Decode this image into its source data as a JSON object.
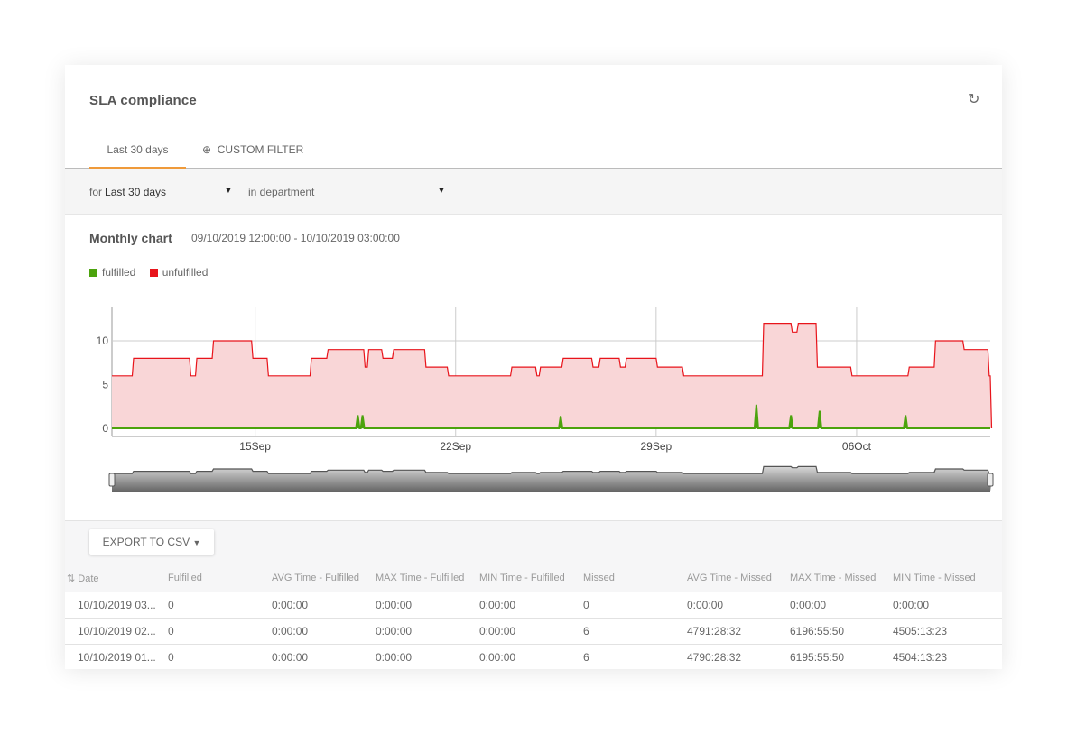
{
  "header": {
    "title": "SLA compliance",
    "refresh_icon": "refresh-icon"
  },
  "tabs": [
    {
      "label": "Last 30 days",
      "active": true
    },
    {
      "label": "CUSTOM FILTER",
      "icon": "plus-circle-icon"
    }
  ],
  "filters": {
    "for_label": "for",
    "period": "Last 30 days",
    "department": "in department"
  },
  "chart": {
    "title": "Monthly chart",
    "range": "09/10/2019 12:00:00 - 10/10/2019 03:00:00"
  },
  "chart_data": {
    "type": "area",
    "x_range": [
      "2019-09-10T00:00",
      "2019-10-10T16:00"
    ],
    "ylim": [
      -1,
      14
    ],
    "y_ticks": [
      0,
      5,
      10
    ],
    "x_ticks": [
      {
        "date": "2019-09-15T00:00",
        "label": "15Sep"
      },
      {
        "date": "2019-09-22T00:00",
        "label": "22Sep"
      },
      {
        "date": "2019-09-29T00:00",
        "label": "29Sep"
      },
      {
        "date": "2019-10-06T00:00",
        "label": "06Oct"
      }
    ],
    "grid": true,
    "legend": "top-left",
    "series": [
      {
        "name": "unfulfilled",
        "color": "#e8141b",
        "fill": "#f9d6d7",
        "step": true,
        "points": [
          [
            "2019-09-10T00:00",
            6
          ],
          [
            "2019-09-10T17:00",
            8
          ],
          [
            "2019-09-12T17:00",
            6
          ],
          [
            "2019-09-12T22:00",
            8
          ],
          [
            "2019-09-13T12:00",
            10
          ],
          [
            "2019-09-14T21:00",
            8
          ],
          [
            "2019-09-15T10:00",
            6
          ],
          [
            "2019-09-16T22:00",
            8
          ],
          [
            "2019-09-17T12:00",
            9
          ],
          [
            "2019-09-18T19:00",
            7
          ],
          [
            "2019-09-18T22:00",
            9
          ],
          [
            "2019-09-19T10:00",
            8
          ],
          [
            "2019-09-19T19:00",
            9
          ],
          [
            "2019-09-20T22:00",
            7
          ],
          [
            "2019-09-21T17:00",
            6
          ],
          [
            "2019-09-23T22:00",
            7
          ],
          [
            "2019-09-24T19:00",
            6
          ],
          [
            "2019-09-24T22:00",
            7
          ],
          [
            "2019-09-25T17:00",
            8
          ],
          [
            "2019-09-26T18:00",
            7
          ],
          [
            "2019-09-27T00:00",
            8
          ],
          [
            "2019-09-27T17:00",
            7
          ],
          [
            "2019-09-27T22:00",
            8
          ],
          [
            "2019-09-29T00:00",
            7
          ],
          [
            "2019-09-29T22:00",
            6
          ],
          [
            "2019-10-02T17:00",
            12
          ],
          [
            "2019-10-03T17:00",
            11
          ],
          [
            "2019-10-03T22:00",
            12
          ],
          [
            "2019-10-04T14:00",
            7
          ],
          [
            "2019-10-05T19:00",
            6
          ],
          [
            "2019-10-07T19:00",
            7
          ],
          [
            "2019-10-08T17:00",
            10
          ],
          [
            "2019-10-09T17:00",
            9
          ],
          [
            "2019-10-10T14:00",
            6
          ],
          [
            "2019-10-10T16:00",
            0
          ]
        ]
      },
      {
        "name": "fulfilled",
        "color": "#4ca30d",
        "spikes": [
          [
            "2019-09-18T14:00",
            1.5
          ],
          [
            "2019-09-18T18:00",
            1.5
          ],
          [
            "2019-09-25T16:00",
            1.4
          ],
          [
            "2019-10-02T12:00",
            2.7
          ],
          [
            "2019-10-03T17:00",
            1.5
          ],
          [
            "2019-10-04T17:00",
            2.0
          ],
          [
            "2019-10-07T17:00",
            1.5
          ]
        ]
      }
    ]
  },
  "table": {
    "export_label": "EXPORT TO CSV",
    "columns": [
      "Date",
      "Fulfilled",
      "AVG Time - Fulfilled",
      "MAX Time - Fulfilled",
      "MIN Time - Fulfilled",
      "Missed",
      "AVG Time - Missed",
      "MAX Time - Missed",
      "MIN Time - Missed"
    ],
    "rows": [
      [
        "10/10/2019 03...",
        "0",
        "0:00:00",
        "0:00:00",
        "0:00:00",
        "0",
        "0:00:00",
        "0:00:00",
        "0:00:00"
      ],
      [
        "10/10/2019 02...",
        "0",
        "0:00:00",
        "0:00:00",
        "0:00:00",
        "6",
        "4791:28:32",
        "6196:55:50",
        "4505:13:23"
      ],
      [
        "10/10/2019 01...",
        "0",
        "0:00:00",
        "0:00:00",
        "0:00:00",
        "6",
        "4790:28:32",
        "6195:55:50",
        "4504:13:23"
      ]
    ]
  }
}
